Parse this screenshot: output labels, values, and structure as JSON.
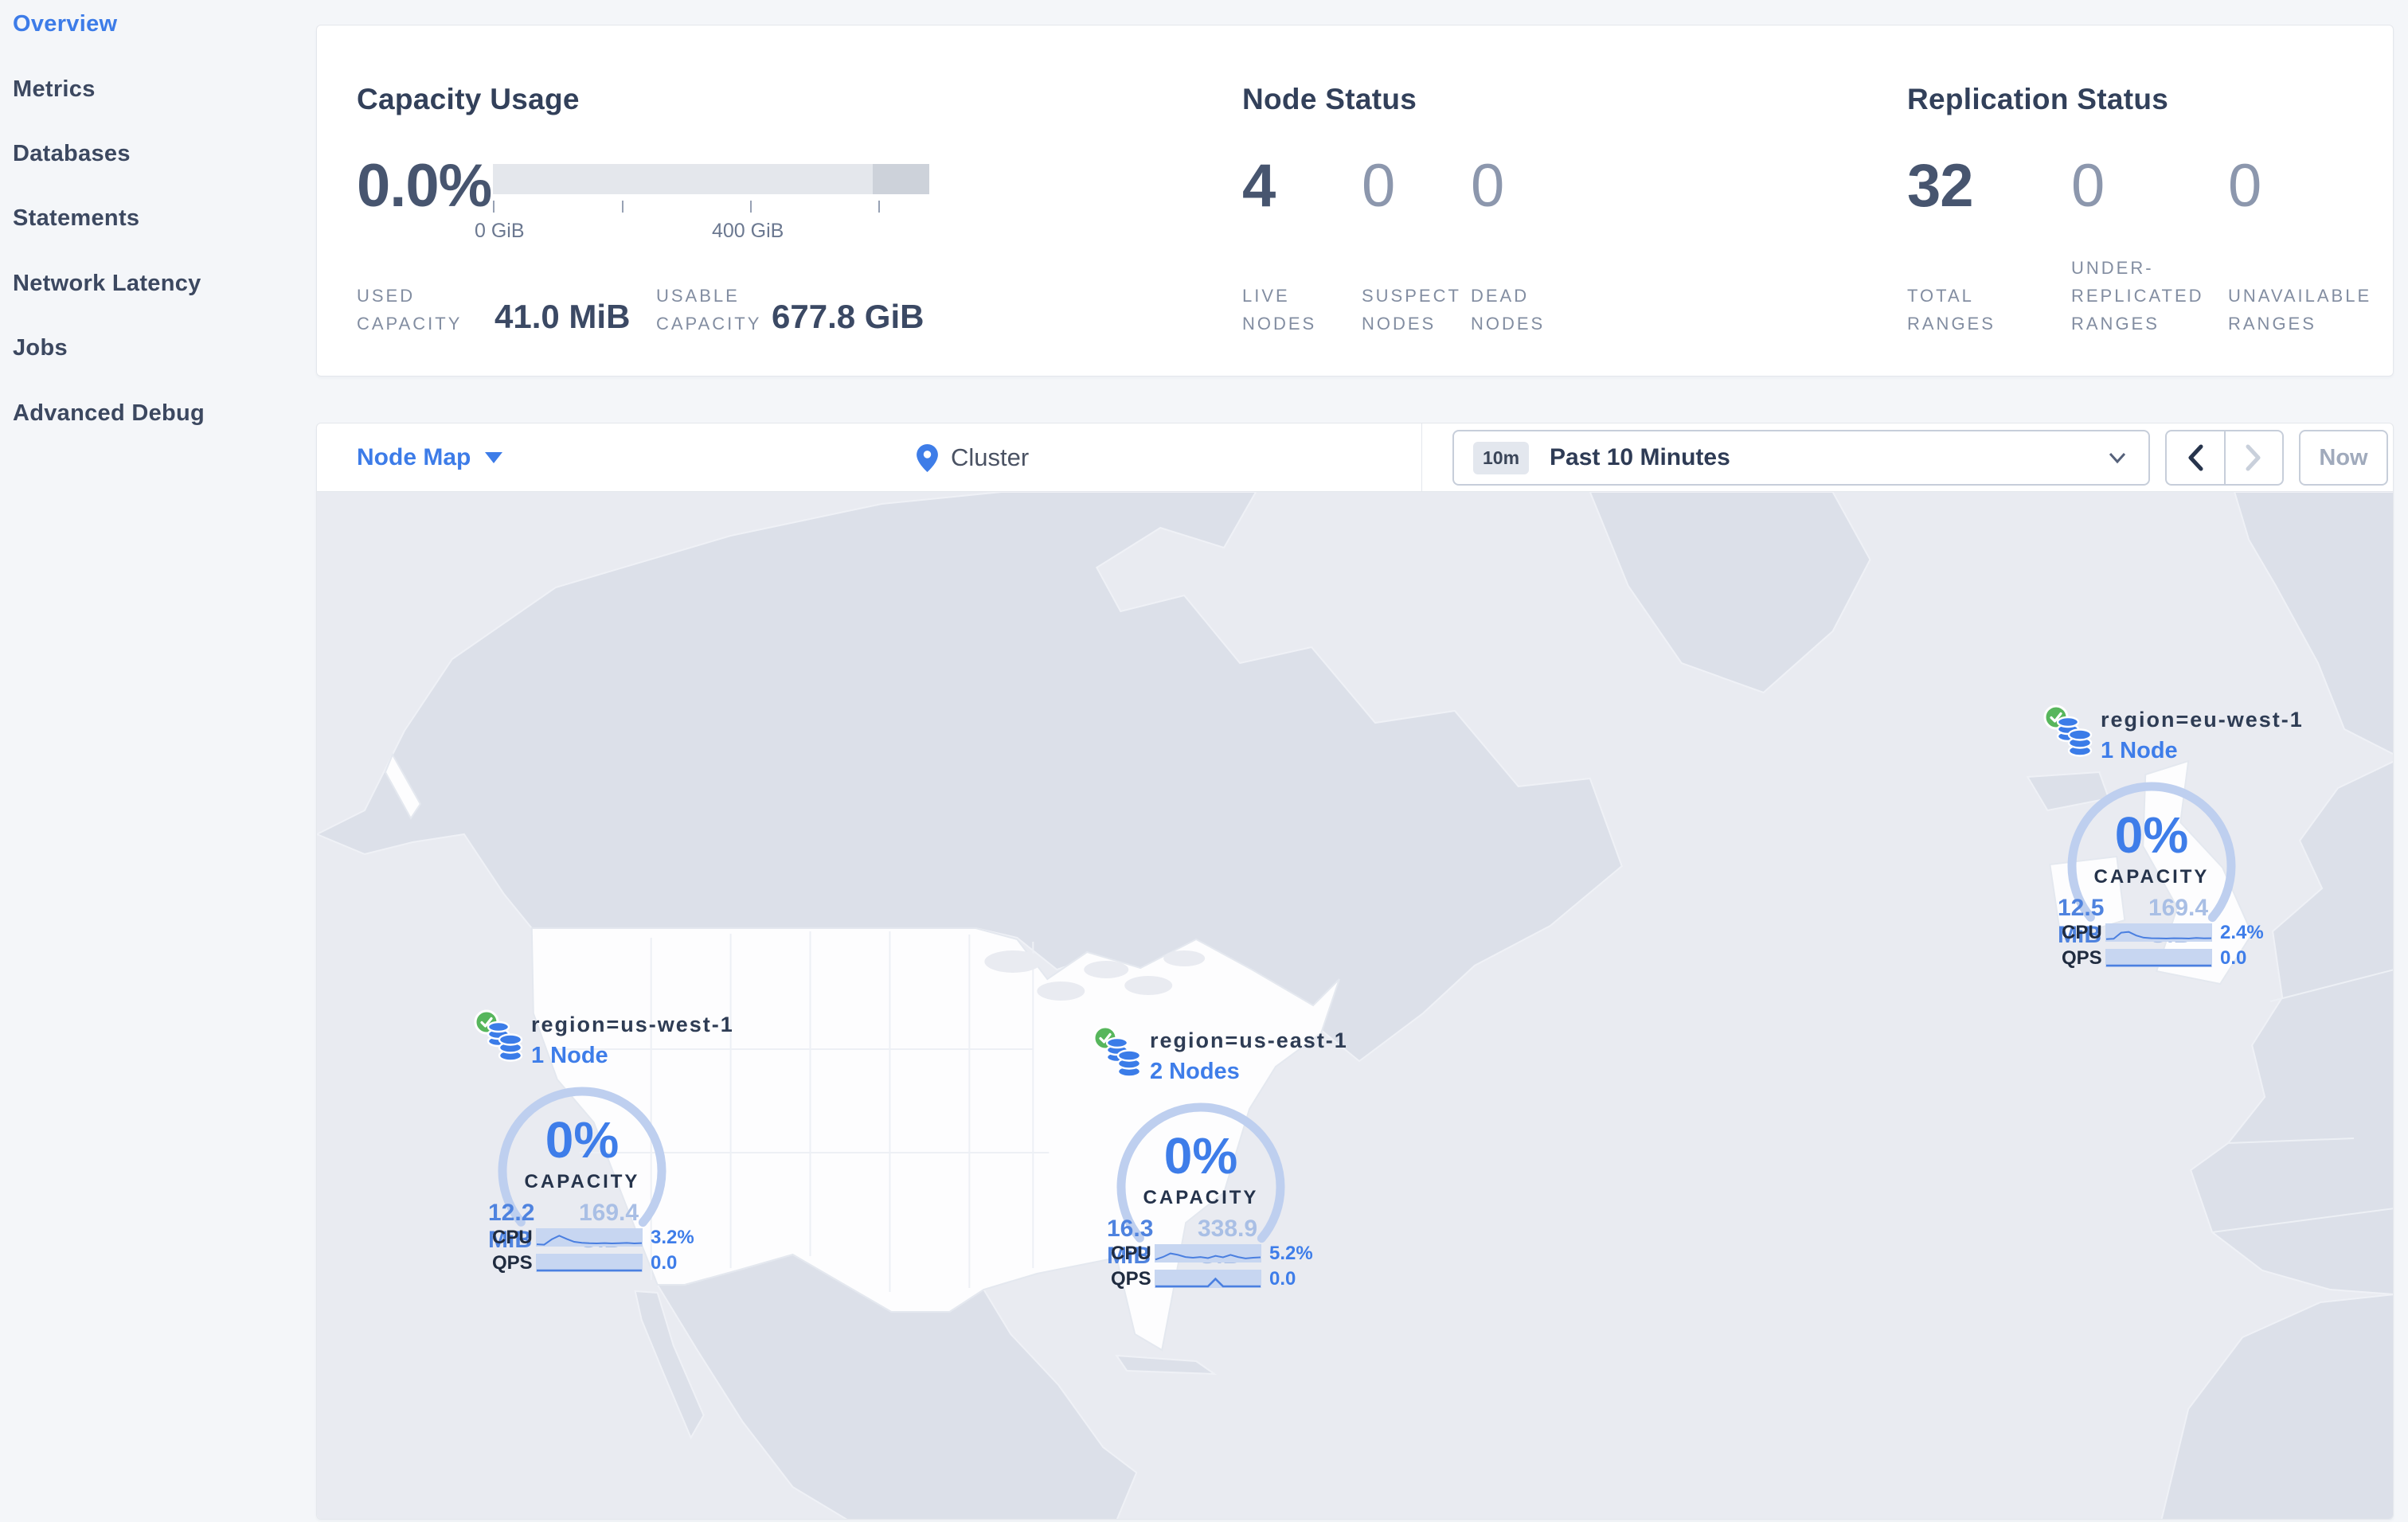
{
  "colors": {
    "accent_blue": "#3D7CE8",
    "status_green": "#57B65C",
    "gauge_arc": "#BECFEF"
  },
  "sidebar": {
    "items": [
      {
        "label": "Overview",
        "active": true
      },
      {
        "label": "Metrics"
      },
      {
        "label": "Databases"
      },
      {
        "label": "Statements"
      },
      {
        "label": "Network Latency"
      },
      {
        "label": "Jobs"
      },
      {
        "label": "Advanced Debug"
      }
    ]
  },
  "stats": {
    "capacity": {
      "title": "Capacity Usage",
      "percent": "0.0%",
      "tick_label_0": "0 GiB",
      "tick_label_400": "400 GiB",
      "used_label": "USED CAPACITY",
      "used_value": "41.0 MiB",
      "usable_label": "USABLE CAPACITY",
      "usable_value": "677.8 GiB"
    },
    "nodes": {
      "title": "Node Status",
      "items": [
        {
          "value": "4",
          "label": "LIVE NODES"
        },
        {
          "value": "0",
          "label": "SUSPECT NODES"
        },
        {
          "value": "0",
          "label": "DEAD NODES"
        }
      ]
    },
    "replication": {
      "title": "Replication Status",
      "items": [
        {
          "value": "32",
          "label": "TOTAL RANGES"
        },
        {
          "value": "0",
          "label": "UNDER-REPLICATED RANGES"
        },
        {
          "value": "0",
          "label": "UNAVAILABLE RANGES"
        }
      ]
    }
  },
  "toolbar": {
    "view_selector": "Node Map",
    "breadcrumb": "Cluster",
    "time_badge": "10m",
    "time_label": "Past 10 Minutes",
    "now_label": "Now"
  },
  "map": {
    "regions": [
      {
        "name": "region=us-west-1",
        "nodes": "1 Node",
        "capacity_pct": "0%",
        "capacity_label": "CAPACITY",
        "used": "12.2 MiB",
        "total": "169.4 GiB",
        "cpu_label": "CPU",
        "cpu_value": "3.2%",
        "qps_label": "QPS",
        "qps_value": "0.0",
        "cpu_spark": [
          0.08,
          0.05,
          0.42,
          0.68,
          0.45,
          0.25,
          0.18,
          0.15,
          0.14,
          0.16,
          0.14,
          0.15,
          0.17,
          0.14,
          0.16
        ],
        "qps_spark": [
          0.03,
          0.03,
          0.03,
          0.03,
          0.03,
          0.03,
          0.03,
          0.03,
          0.03,
          0.03,
          0.03,
          0.03,
          0.03,
          0.03,
          0.03
        ]
      },
      {
        "name": "region=us-east-1",
        "nodes": "2 Nodes",
        "capacity_pct": "0%",
        "capacity_label": "CAPACITY",
        "used": "16.3 MiB",
        "total": "338.9 GiB",
        "cpu_label": "CPU",
        "cpu_value": "5.2%",
        "qps_label": "QPS",
        "qps_value": "0.0",
        "cpu_spark": [
          0.12,
          0.3,
          0.55,
          0.45,
          0.3,
          0.25,
          0.3,
          0.22,
          0.38,
          0.28,
          0.45,
          0.3,
          0.2,
          0.25,
          0.28
        ],
        "qps_spark": [
          0.03,
          0.03,
          0.03,
          0.03,
          0.03,
          0.03,
          0.03,
          0.03,
          0.55,
          0.03,
          0.03,
          0.03,
          0.03,
          0.03,
          0.03
        ]
      },
      {
        "name": "region=eu-west-1",
        "nodes": "1 Node",
        "capacity_pct": "0%",
        "capacity_label": "CAPACITY",
        "used": "12.5 MiB",
        "total": "169.4 GiB",
        "cpu_label": "CPU",
        "cpu_value": "2.4%",
        "qps_label": "QPS",
        "qps_value": "0.0",
        "cpu_spark": [
          0.1,
          0.12,
          0.55,
          0.6,
          0.35,
          0.2,
          0.16,
          0.15,
          0.14,
          0.16,
          0.15,
          0.14,
          0.18,
          0.15,
          0.16
        ],
        "qps_spark": [
          0.03,
          0.03,
          0.03,
          0.03,
          0.03,
          0.03,
          0.03,
          0.03,
          0.03,
          0.03,
          0.03,
          0.03,
          0.03,
          0.03,
          0.03
        ]
      }
    ]
  }
}
